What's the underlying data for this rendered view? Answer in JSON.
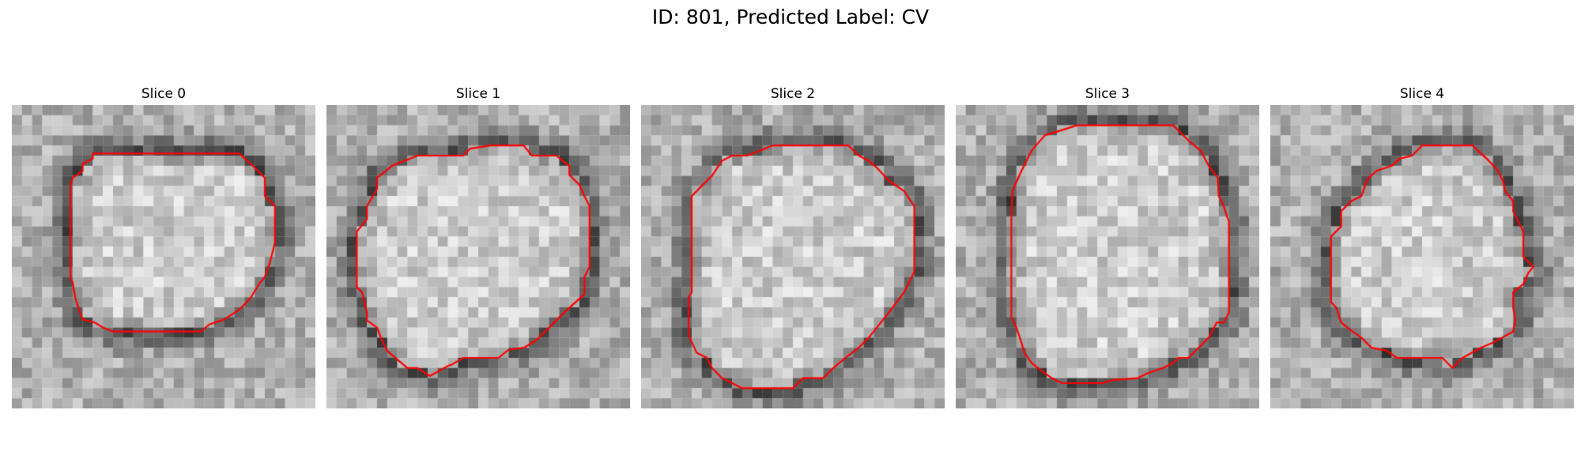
{
  "figure": {
    "title": "ID: 801, Predicted Label: CV"
  },
  "panels": [
    {
      "title": "Slice 0",
      "contour": [
        [
          8.0,
          4.8
        ],
        [
          10.0,
          4.8
        ],
        [
          14.5,
          4.8
        ],
        [
          17.0,
          4.8
        ],
        [
          22.5,
          4.8
        ],
        [
          23.8,
          6.0
        ],
        [
          25.0,
          7.2
        ],
        [
          25.0,
          9.0
        ],
        [
          26.0,
          10.0
        ],
        [
          26.0,
          13.6
        ],
        [
          25.5,
          15.6
        ],
        [
          25.0,
          17.0
        ],
        [
          24.5,
          17.6
        ],
        [
          23.5,
          19.2
        ],
        [
          22.5,
          20.2
        ],
        [
          21.0,
          21.2
        ],
        [
          19.5,
          21.7
        ],
        [
          18.7,
          22.4
        ],
        [
          15.0,
          22.4
        ],
        [
          13.5,
          22.4
        ],
        [
          12.0,
          22.4
        ],
        [
          10.0,
          22.4
        ],
        [
          9.0,
          22.0
        ],
        [
          8.2,
          21.5
        ],
        [
          7.0,
          21.2
        ],
        [
          6.7,
          20.4
        ],
        [
          6.3,
          19.2
        ],
        [
          6.0,
          17.5
        ],
        [
          5.8,
          17.2
        ],
        [
          5.8,
          8.0
        ],
        [
          6.0,
          7.2
        ],
        [
          7.0,
          6.5
        ],
        [
          7.0,
          5.8
        ],
        [
          8.0,
          5.3
        ]
      ]
    },
    {
      "title": "Slice 1",
      "contour": [
        [
          6.5,
          6.0
        ],
        [
          9.0,
          5.0
        ],
        [
          10.0,
          5.0
        ],
        [
          13.5,
          5.0
        ],
        [
          14.2,
          4.3
        ],
        [
          16.2,
          4.0
        ],
        [
          19.5,
          4.0
        ],
        [
          20.3,
          5.0
        ],
        [
          22.7,
          5.0
        ],
        [
          24.0,
          6.0
        ],
        [
          24.0,
          6.9
        ],
        [
          25.0,
          7.9
        ],
        [
          25.5,
          9.0
        ],
        [
          26.0,
          10.0
        ],
        [
          26.0,
          16.0
        ],
        [
          25.5,
          17.0
        ],
        [
          25.5,
          18.7
        ],
        [
          24.5,
          19.6
        ],
        [
          23.5,
          20.5
        ],
        [
          22.0,
          22.0
        ],
        [
          20.8,
          23.2
        ],
        [
          19.5,
          24.0
        ],
        [
          18.0,
          24.2
        ],
        [
          17.0,
          25.0
        ],
        [
          13.5,
          25.0
        ],
        [
          12.5,
          25.6
        ],
        [
          12.0,
          25.8
        ],
        [
          10.2,
          26.8
        ],
        [
          9.0,
          26.0
        ],
        [
          8.0,
          26.0
        ],
        [
          6.0,
          24.3
        ],
        [
          5.5,
          23.3
        ],
        [
          5.0,
          22.0
        ],
        [
          4.0,
          21.3
        ],
        [
          4.0,
          20.5
        ],
        [
          3.5,
          18.5
        ],
        [
          3.0,
          18.0
        ],
        [
          3.0,
          12.5
        ],
        [
          4.0,
          11.3
        ],
        [
          4.0,
          10.0
        ],
        [
          5.0,
          8.3
        ],
        [
          5.0,
          7.2
        ]
      ]
    },
    {
      "title": "Slice 2",
      "contour": [
        [
          10.5,
          5.0
        ],
        [
          13.0,
          4.0
        ],
        [
          14.0,
          4.0
        ],
        [
          19.0,
          4.0
        ],
        [
          20.5,
          4.0
        ],
        [
          21.5,
          5.0
        ],
        [
          22.5,
          5.5
        ],
        [
          23.3,
          6.2
        ],
        [
          24.5,
          7.5
        ],
        [
          26.0,
          8.5
        ],
        [
          27.0,
          10.0
        ],
        [
          27.0,
          13.0
        ],
        [
          27.0,
          16.5
        ],
        [
          26.5,
          17.5
        ],
        [
          26.0,
          18.5
        ],
        [
          24.5,
          20.5
        ],
        [
          23.3,
          22.0
        ],
        [
          22.5,
          23.0
        ],
        [
          21.5,
          24.0
        ],
        [
          20.2,
          25.0
        ],
        [
          19.0,
          26.0
        ],
        [
          18.0,
          27.0
        ],
        [
          16.0,
          27.0
        ],
        [
          15.0,
          28.0
        ],
        [
          13.0,
          28.0
        ],
        [
          10.0,
          28.0
        ],
        [
          8.0,
          27.0
        ],
        [
          7.0,
          26.0
        ],
        [
          6.5,
          25.0
        ],
        [
          5.5,
          24.5
        ],
        [
          4.8,
          23.0
        ],
        [
          4.7,
          22.0
        ],
        [
          4.7,
          19.0
        ],
        [
          5.0,
          18.5
        ],
        [
          5.0,
          12.0
        ],
        [
          5.0,
          9.0
        ],
        [
          6.0,
          8.0
        ],
        [
          7.0,
          7.0
        ],
        [
          8.0,
          5.5
        ],
        [
          9.0,
          5.0
        ]
      ]
    },
    {
      "title": "Slice 3",
      "contour": [
        [
          8.8,
          3.0
        ],
        [
          12.0,
          2.0
        ],
        [
          14.0,
          2.0
        ],
        [
          21.5,
          2.0
        ],
        [
          23.0,
          3.5
        ],
        [
          24.2,
          4.5
        ],
        [
          25.0,
          6.0
        ],
        [
          25.9,
          7.2
        ],
        [
          26.0,
          9.0
        ],
        [
          26.5,
          10.0
        ],
        [
          26.8,
          11.0
        ],
        [
          27.0,
          11.5
        ],
        [
          27.0,
          20.5
        ],
        [
          26.5,
          21.5
        ],
        [
          25.8,
          21.5
        ],
        [
          25.0,
          23.0
        ],
        [
          24.0,
          24.0
        ],
        [
          23.0,
          25.0
        ],
        [
          22.0,
          25.0
        ],
        [
          21.5,
          25.5
        ],
        [
          20.5,
          26.0
        ],
        [
          19.0,
          26.5
        ],
        [
          18.0,
          27.0
        ],
        [
          15.5,
          27.2
        ],
        [
          14.5,
          27.5
        ],
        [
          10.5,
          27.5
        ],
        [
          9.5,
          27.0
        ],
        [
          8.5,
          26.3
        ],
        [
          7.5,
          25.5
        ],
        [
          6.8,
          24.5
        ],
        [
          6.5,
          23.5
        ],
        [
          6.0,
          22.0
        ],
        [
          5.5,
          21.0
        ],
        [
          5.5,
          17.0
        ],
        [
          5.5,
          11.0
        ],
        [
          5.6,
          8.5
        ],
        [
          6.5,
          6.5
        ],
        [
          7.0,
          5.5
        ],
        [
          7.5,
          4.5
        ]
      ]
    },
    {
      "title": "Slice 4",
      "contour": [
        [
          15.0,
          4.0
        ],
        [
          18.0,
          4.0
        ],
        [
          20.0,
          4.0
        ],
        [
          20.5,
          4.5
        ],
        [
          21.6,
          5.5
        ],
        [
          22.5,
          6.5
        ],
        [
          23.0,
          7.5
        ],
        [
          23.2,
          8.5
        ],
        [
          24.0,
          9.5
        ],
        [
          24.0,
          10.5
        ],
        [
          24.5,
          11.5
        ],
        [
          25.0,
          12.5
        ],
        [
          25.0,
          15.0
        ],
        [
          26.0,
          16.0
        ],
        [
          25.5,
          16.6
        ],
        [
          25.0,
          17.7
        ],
        [
          24.0,
          18.5
        ],
        [
          24.0,
          20.0
        ],
        [
          24.2,
          21.2
        ],
        [
          24.0,
          22.4
        ],
        [
          22.9,
          23.0
        ],
        [
          22.0,
          23.5
        ],
        [
          20.8,
          24.0
        ],
        [
          19.0,
          25.0
        ],
        [
          18.8,
          25.2
        ],
        [
          18.0,
          26.0
        ],
        [
          17.0,
          25.0
        ],
        [
          14.0,
          25.0
        ],
        [
          12.5,
          25.0
        ],
        [
          11.5,
          24.3
        ],
        [
          10.0,
          24.0
        ],
        [
          9.0,
          23.0
        ],
        [
          8.0,
          22.3
        ],
        [
          7.0,
          21.5
        ],
        [
          6.5,
          20.0
        ],
        [
          6.0,
          19.5
        ],
        [
          6.0,
          16.0
        ],
        [
          6.0,
          13.0
        ],
        [
          7.0,
          12.0
        ],
        [
          7.0,
          10.5
        ],
        [
          8.0,
          9.5
        ],
        [
          9.0,
          9.0
        ],
        [
          9.6,
          7.3
        ],
        [
          10.5,
          6.5
        ],
        [
          12.0,
          6.0
        ],
        [
          12.8,
          5.3
        ],
        [
          14.0,
          5.0
        ]
      ]
    }
  ],
  "colors": {
    "contour": "#ff0000",
    "background": "#ffffff"
  }
}
